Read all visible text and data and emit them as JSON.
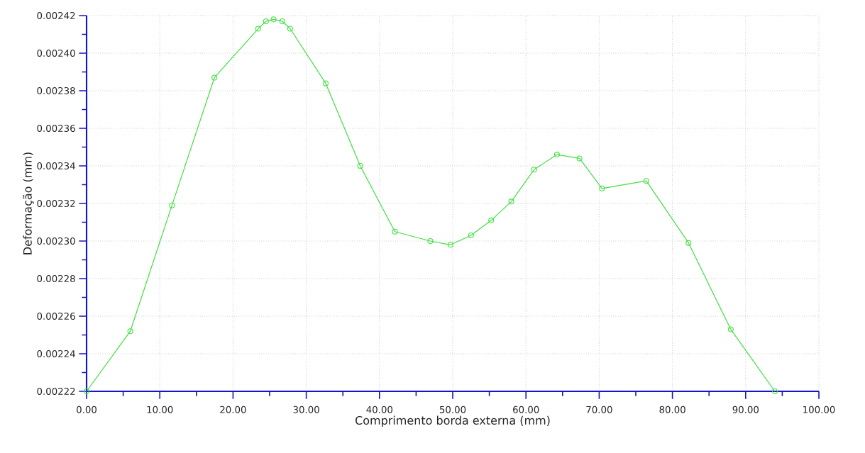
{
  "chart_data": {
    "type": "line",
    "xlabel": "Comprimento borda externa (mm)",
    "ylabel": "Deformação (mm)",
    "x": [
      0,
      5.97,
      11.66,
      17.46,
      23.43,
      24.5,
      25.54,
      26.73,
      27.8,
      32.65,
      37.37,
      42.1,
      46.94,
      49.69,
      52.5,
      55.25,
      58.0,
      61.1,
      64.24,
      67.31,
      70.38,
      76.43,
      82.2,
      87.97,
      93.99
    ],
    "series": [
      {
        "color": "#44dd44",
        "values": [
          0.00222,
          0.002252,
          0.002319,
          0.002387,
          0.002413,
          0.002417,
          0.002418,
          0.002417,
          0.002413,
          0.002384,
          0.00234,
          0.002305,
          0.0023,
          0.002298,
          0.002303,
          0.002311,
          0.002321,
          0.002338,
          0.002346,
          0.002344,
          0.002328,
          0.002332,
          0.002299,
          0.002253,
          0.00222
        ]
      }
    ],
    "xlim": [
      0,
      100
    ],
    "ylim": [
      0.00222,
      0.00242
    ],
    "xticks": [
      {
        "value": 0,
        "label": "0.00"
      },
      {
        "value": 10,
        "label": "10.00"
      },
      {
        "value": 20,
        "label": "20.00"
      },
      {
        "value": 30,
        "label": "30.00"
      },
      {
        "value": 40,
        "label": "40.00"
      },
      {
        "value": 50,
        "label": "50.00"
      },
      {
        "value": 60,
        "label": "60.00"
      },
      {
        "value": 70,
        "label": "70.00"
      },
      {
        "value": 80,
        "label": "80.00"
      },
      {
        "value": 90,
        "label": "90.00"
      },
      {
        "value": 100,
        "label": "100.00"
      }
    ],
    "yticks": [
      0.00222,
      0.00224,
      0.00226,
      0.00228,
      {
        "value": 0.0023,
        "label": "0.00230"
      },
      0.00232,
      0.00234,
      0.00236,
      0.00238,
      {
        "value": 0.0024,
        "label": "0.00240"
      },
      0.00242
    ],
    "grid": true,
    "marker": "circle",
    "line_style": "solid"
  }
}
